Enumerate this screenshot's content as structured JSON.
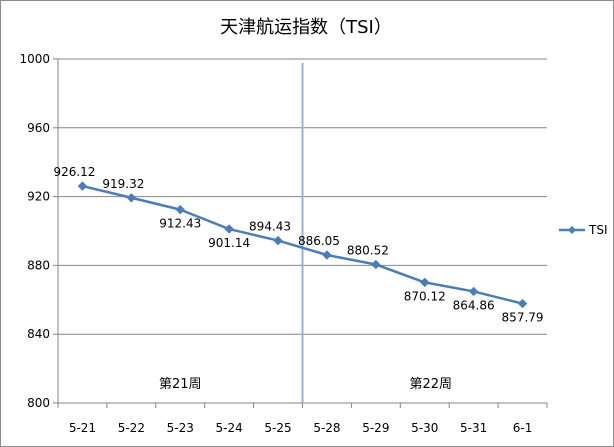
{
  "chart_data": {
    "type": "line",
    "title": "天津航运指数（TSI）",
    "xlabel": "",
    "ylabel": "",
    "categories": [
      "5-21",
      "5-22",
      "5-23",
      "5-24",
      "5-25",
      "5-28",
      "5-29",
      "5-30",
      "5-31",
      "6-1"
    ],
    "series": [
      {
        "name": "TSI",
        "values": [
          926.12,
          919.32,
          912.43,
          901.14,
          894.43,
          886.05,
          880.52,
          870.12,
          864.86,
          857.79
        ],
        "labels": [
          "926.12",
          "919.32",
          "912.43",
          "901.14",
          "894.43",
          "886.05",
          "880.52",
          "870.12",
          "864.86",
          "857.79"
        ],
        "color": "#4a7ebb"
      }
    ],
    "ylim": [
      800,
      1000
    ],
    "yticks": [
      800,
      840,
      880,
      920,
      960,
      1000
    ],
    "grid": true,
    "legend_position": "right",
    "annotations": [
      {
        "text": "第21周",
        "range": [
          "5-21",
          "5-25"
        ]
      },
      {
        "text": "第22周",
        "range": [
          "5-28",
          "6-1"
        ]
      }
    ],
    "divider": {
      "between": [
        "5-25",
        "5-28"
      ],
      "color": "#8eb4e3"
    }
  }
}
